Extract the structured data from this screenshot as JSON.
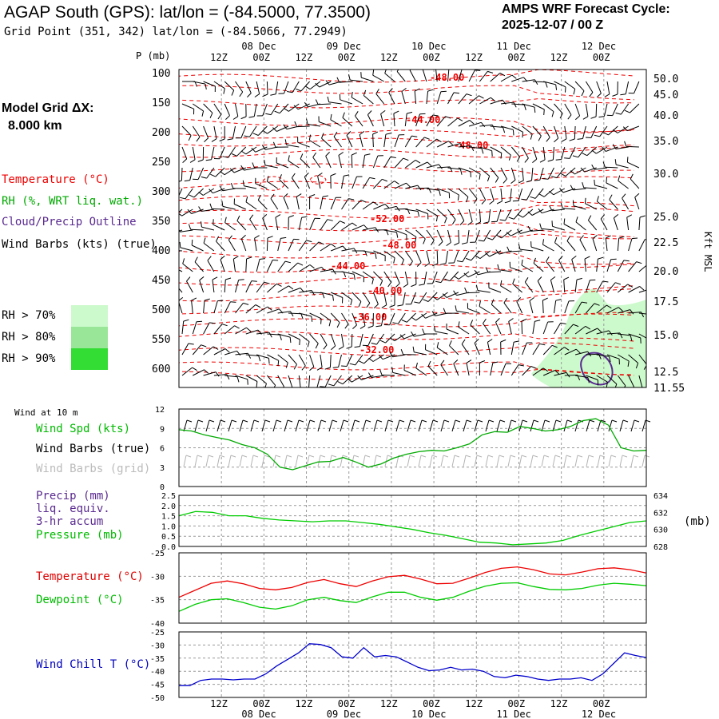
{
  "header": {
    "title": "AGAP South (GPS):  lat/lon = (-84.5000, 77.3500)",
    "grid_point": "Grid Point (351, 342) lat/lon = (-84.5066, 77.2949)",
    "cycle_label": "AMPS WRF Forecast Cycle:",
    "cycle_value": "2025-12-07 / 00  Z",
    "model_grid_label": "Model Grid ΔX:",
    "model_grid_value": "8.000 km"
  },
  "colors": {
    "temperature": "#ee0000",
    "rh": "#00aa00",
    "cloud": "#5a2a90",
    "wind": "#000000",
    "wind_grid": "#b4b4b4",
    "wind_chill": "#0000cc",
    "dewpoint": "#00cc00",
    "pressure": "#00cc00",
    "grid": "#999999"
  },
  "legend": {
    "temperature": "Temperature (°C)",
    "rh": "RH (%, WRT liq. wat.)",
    "cloud": "Cloud/Precip Outline",
    "wind": "Wind Barbs (kts) (true)",
    "rh70": "RH > 70%",
    "rh80": "RH > 80%",
    "rh90": "RH > 90%"
  },
  "panel_labels": {
    "wind10": "Wind at 10 m",
    "wind_spd": "Wind Spd (kts)",
    "wind_barbs_true": "Wind Barbs (true)",
    "wind_barbs_grid": "Wind Barbs (grid)",
    "precip": "Precip (mm)",
    "precip2": "liq. equiv.",
    "precip3": "3-hr accum",
    "pressure": "Pressure (mb)",
    "pressure_unit": "(mb)",
    "temperature": "Temperature (°C)",
    "dewpoint": "Dewpoint (°C)",
    "windchill": "Wind Chill T (°C)",
    "p_axis": "P (mb)",
    "kft_axis": "Kft MSL"
  },
  "chart_data": {
    "type": "line",
    "time": {
      "x": [
        0,
        6,
        12,
        18,
        24,
        30,
        36,
        42,
        48,
        54,
        60,
        66,
        72,
        78,
        84,
        90,
        96,
        102,
        108,
        114,
        120
      ],
      "hour_labels": [
        "12Z",
        "00Z",
        "12Z",
        "00Z",
        "12Z",
        "00Z",
        "12Z",
        "00Z",
        "12Z",
        "00Z"
      ],
      "hour_ticks": [
        6,
        12,
        18,
        24,
        30,
        36,
        42,
        48,
        54,
        60
      ],
      "day_labels": [
        "08 Dec",
        "09 Dec",
        "10 Dec",
        "11 Dec",
        "12 Dec"
      ],
      "day_ticks": [
        12,
        24,
        36,
        48,
        60
      ]
    },
    "profile": {
      "pressure_ticks": [
        "100",
        "150",
        "200",
        "250",
        "300",
        "350",
        "400",
        "450",
        "500",
        "550",
        "600"
      ],
      "height_ticks": [
        "50.0",
        "45.0",
        "40.0",
        "35.0",
        "30.0",
        "25.0",
        "22.5",
        "20.0",
        "17.5",
        "15.0",
        "12.5",
        "11.55"
      ],
      "temperature_contour_labels": [
        "-48.00",
        "-44.00",
        "-48.00",
        "-52.00",
        "-48.00",
        "-44.00",
        "-40.00",
        "-36.00",
        "-32.00"
      ],
      "rh_regions": [
        ">70%",
        ">80%",
        ">90%"
      ]
    },
    "wind10": {
      "ylim": [
        0,
        12
      ],
      "yticks": [
        "12",
        "9",
        "6",
        "3",
        "0"
      ],
      "speed_kts": [
        8.8,
        8.6,
        8.0,
        7.6,
        7.2,
        6.5,
        6.0,
        5.0,
        3.0,
        2.6,
        3.2,
        3.8,
        3.9,
        4.5,
        3.8,
        3.0,
        3.5,
        4.4,
        5.0,
        5.4,
        5.6,
        5.5,
        6.0,
        6.6,
        8.0,
        8.5,
        8.4,
        9.3,
        9.0,
        8.6,
        8.8,
        9.3,
        10.2,
        10.5,
        9.5,
        6.0,
        5.5,
        5.6
      ]
    },
    "precip_pressure": {
      "precip_ylim": [
        0,
        2.5
      ],
      "precip_ticks": [
        "2.5",
        "2.0",
        "1.5",
        "1.0",
        "0.5",
        "0.0"
      ],
      "precip_mm": [],
      "pressure_ylim": [
        628,
        634
      ],
      "pressure_ticks": [
        "634",
        "632",
        "630",
        "628"
      ],
      "pressure_mb": [
        631.6,
        632.1,
        632.0,
        631.6,
        631.6,
        631.3,
        631.1,
        631.0,
        630.9,
        631.0,
        631.0,
        630.8,
        630.6,
        630.3,
        630.0,
        629.6,
        629.3,
        628.9,
        628.5,
        628.4,
        628.2,
        628.3,
        628.4,
        628.7,
        629.3,
        629.8,
        630.3,
        630.8,
        631.0
      ]
    },
    "temp_dew": {
      "ylim": [
        -40,
        -25
      ],
      "yticks": [
        "-25",
        "-30",
        "-35",
        "-40"
      ],
      "temperature_c": [
        -34.5,
        -33.0,
        -31.5,
        -31.0,
        -31.6,
        -32.6,
        -32.9,
        -32.4,
        -31.3,
        -30.7,
        -31.6,
        -32.2,
        -31.0,
        -30.1,
        -29.8,
        -30.6,
        -31.6,
        -31.5,
        -30.4,
        -29.2,
        -28.3,
        -28.0,
        -28.6,
        -29.5,
        -29.7,
        -29.1,
        -28.4,
        -28.2,
        -28.6,
        -29.3
      ],
      "dewpoint_c": [
        -37.5,
        -36.0,
        -35.0,
        -34.8,
        -35.6,
        -36.6,
        -37.0,
        -36.3,
        -35.0,
        -34.5,
        -35.2,
        -35.6,
        -34.4,
        -33.4,
        -33.4,
        -34.5,
        -35.1,
        -34.5,
        -33.2,
        -32.1,
        -31.5,
        -31.4,
        -32.2,
        -32.8,
        -32.9,
        -32.6,
        -31.9,
        -31.5,
        -31.7,
        -32.0
      ]
    },
    "windchill": {
      "ylim": [
        -50,
        -25
      ],
      "yticks": [
        "-25",
        "-30",
        "-35",
        "-40",
        "-45",
        "-50"
      ],
      "windchill_c": [
        -45.5,
        -45.5,
        -43.5,
        -43.0,
        -43.0,
        -43.3,
        -43.0,
        -43.0,
        -41.0,
        -38.0,
        -35.5,
        -33.0,
        -29.5,
        -29.8,
        -31.0,
        -34.5,
        -35.0,
        -31.0,
        -34.5,
        -34.0,
        -34.5,
        -36.5,
        -38.5,
        -39.8,
        -39.5,
        -38.5,
        -39.5,
        -39.2,
        -40.0,
        -42.0,
        -42.5,
        -41.5,
        -42.0,
        -43.0,
        -43.5,
        -43.0,
        -43.0,
        -42.5,
        -43.5,
        -41.0,
        -37.0,
        -33.0,
        -34.0,
        -34.8
      ]
    }
  }
}
